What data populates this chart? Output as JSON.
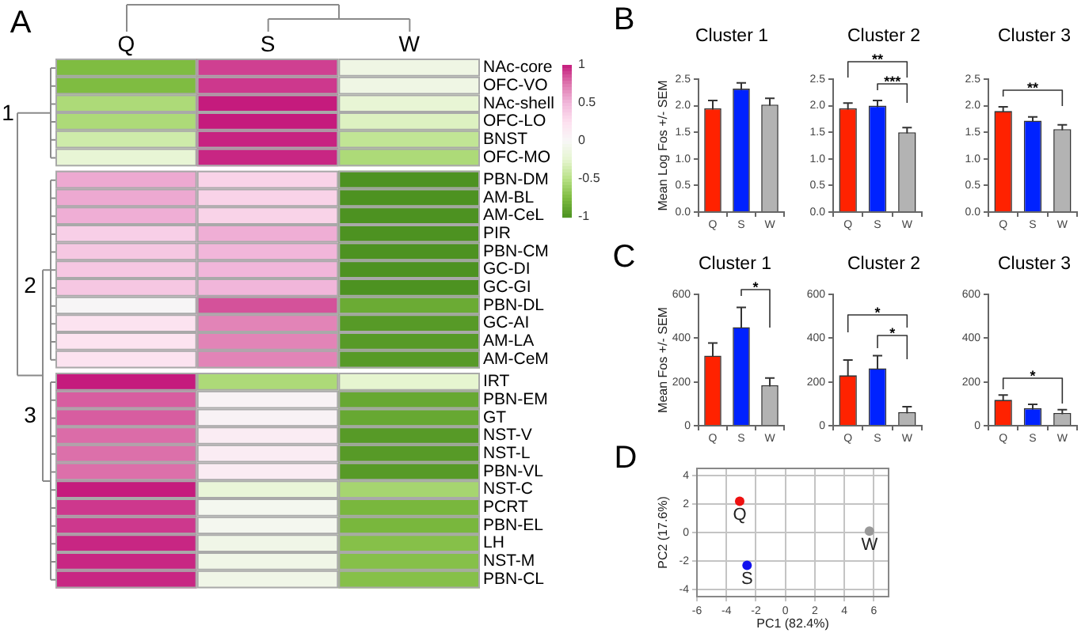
{
  "chart_data": [
    {
      "type": "heatmap",
      "categories": [
        "Q",
        "S",
        "W"
      ],
      "y_categories": [
        "NAc-core",
        "OFC-VO",
        "NAc-shell",
        "OFC-LO",
        "BNST",
        "OFC-MO",
        "PBN-DM",
        "AM-BL",
        "AM-CeL",
        "PIR",
        "PBN-CM",
        "GC-DI",
        "GC-GI",
        "PBN-DL",
        "GC-AI",
        "AM-LA",
        "AM-CeM",
        "IRT",
        "PBN-EM",
        "GT",
        "NST-V",
        "NST-L",
        "PBN-VL",
        "NST-C",
        "PCRT",
        "PBN-EL",
        "LH",
        "NST-M",
        "PBN-CL"
      ],
      "cells": [
        [
          -0.75,
          0.9,
          -0.12
        ],
        [
          -0.75,
          0.92,
          -0.12
        ],
        [
          -0.55,
          1,
          -0.22
        ],
        [
          -0.55,
          1,
          -0.3
        ],
        [
          -0.38,
          0.98,
          -0.45
        ],
        [
          -0.22,
          0.97,
          -0.55
        ],
        [
          0.55,
          0.33,
          -1
        ],
        [
          0.55,
          0.33,
          -1
        ],
        [
          0.53,
          0.33,
          -1
        ],
        [
          0.35,
          0.53,
          -1
        ],
        [
          0.4,
          0.5,
          -1
        ],
        [
          0.4,
          0.5,
          -1
        ],
        [
          0.4,
          0.5,
          -1
        ],
        [
          0.02,
          0.85,
          -0.85
        ],
        [
          0.22,
          0.7,
          -0.95
        ],
        [
          0.22,
          0.7,
          -0.95
        ],
        [
          0.22,
          0.7,
          -0.95
        ],
        [
          1,
          -0.55,
          -0.25
        ],
        [
          0.82,
          0.05,
          -0.87
        ],
        [
          0.82,
          0.05,
          -0.87
        ],
        [
          0.78,
          0.12,
          -0.95
        ],
        [
          0.77,
          0.12,
          -0.95
        ],
        [
          0.77,
          0.12,
          -0.95
        ],
        [
          1,
          -0.2,
          -0.58
        ],
        [
          0.92,
          -0.05,
          -0.78
        ],
        [
          0.92,
          -0.05,
          -0.78
        ],
        [
          0.97,
          -0.1,
          -0.72
        ],
        [
          0.97,
          -0.1,
          -0.72
        ],
        [
          0.97,
          -0.1,
          -0.72
        ]
      ],
      "clim": [
        -1,
        1
      ],
      "cticks": [
        -1,
        -0.5,
        0,
        0.5,
        1
      ],
      "annotations": [
        "A",
        "1",
        "2",
        "3"
      ]
    },
    {
      "type": "bar",
      "title": "Cluster 1",
      "ylabel": "Mean Log Fos +/- SEM",
      "categories": [
        "Q",
        "S",
        "W"
      ],
      "values": [
        1.95,
        2.32,
        2.02
      ],
      "colors": [
        "#ff2200",
        "#0022ff",
        "#b3b3b3"
      ],
      "errors": [
        0.15,
        0.11,
        0.12
      ],
      "ylim": [
        0,
        2.5
      ],
      "yticks": [
        {
          "value": 0,
          "label": "0.0"
        },
        0.5,
        {
          "value": 1,
          "label": "1.0"
        },
        1.5,
        {
          "value": 2,
          "label": "2.0"
        },
        2.5
      ],
      "annotations": [
        "B"
      ]
    },
    {
      "type": "bar",
      "title": "Cluster 2",
      "categories": [
        "Q",
        "S",
        "W"
      ],
      "values": [
        1.95,
        2.0,
        1.5
      ],
      "colors": [
        "#ff2200",
        "#0022ff",
        "#b3b3b3"
      ],
      "errors": [
        0.1,
        0.1,
        0.09
      ],
      "ylim": [
        0,
        2.5
      ],
      "yticks": [
        {
          "value": 0,
          "label": "0.0"
        },
        0.5,
        {
          "value": 1,
          "label": "1.0"
        },
        1.5,
        {
          "value": 2,
          "label": "2.0"
        },
        2.5
      ],
      "annotations": [
        "**",
        "***"
      ]
    },
    {
      "type": "bar",
      "title": "Cluster 3",
      "categories": [
        "Q",
        "S",
        "W"
      ],
      "values": [
        1.9,
        1.72,
        1.56
      ],
      "colors": [
        "#ff2200",
        "#0022ff",
        "#b3b3b3"
      ],
      "errors": [
        0.08,
        0.07,
        0.08
      ],
      "ylim": [
        0,
        2.5
      ],
      "yticks": [
        {
          "value": 0,
          "label": "0.0"
        },
        0.5,
        {
          "value": 1,
          "label": "1.0"
        },
        1.5,
        {
          "value": 2,
          "label": "2.0"
        },
        2.5
      ],
      "annotations": [
        "**"
      ]
    },
    {
      "type": "bar",
      "title": "Cluster 1",
      "ylabel": "Mean Fos +/- SEM",
      "categories": [
        "Q",
        "S",
        "W"
      ],
      "values": [
        320,
        450,
        185
      ],
      "colors": [
        "#ff2200",
        "#0022ff",
        "#b3b3b3"
      ],
      "errors": [
        58,
        90,
        33
      ],
      "ylim": [
        0,
        600
      ],
      "yticks": [
        0,
        200,
        400,
        600
      ],
      "annotations": [
        "C",
        "*"
      ]
    },
    {
      "type": "bar",
      "title": "Cluster 2",
      "categories": [
        "Q",
        "S",
        "W"
      ],
      "values": [
        230,
        262,
        62
      ],
      "colors": [
        "#ff2200",
        "#0022ff",
        "#b3b3b3"
      ],
      "errors": [
        70,
        58,
        25
      ],
      "ylim": [
        0,
        600
      ],
      "yticks": [
        0,
        200,
        400,
        600
      ],
      "annotations": [
        "*",
        "*"
      ]
    },
    {
      "type": "bar",
      "title": "Cluster 3",
      "categories": [
        "Q",
        "S",
        "W"
      ],
      "values": [
        118,
        80,
        58
      ],
      "colors": [
        "#ff2200",
        "#0022ff",
        "#b3b3b3"
      ],
      "errors": [
        22,
        18,
        15
      ],
      "ylim": [
        0,
        600
      ],
      "yticks": [
        0,
        200,
        400,
        600
      ],
      "annotations": [
        "*"
      ]
    },
    {
      "type": "scatter",
      "xlabel": "PC1 (82.4%)",
      "ylabel": "PC2 (17.6%)",
      "series": [
        {
          "name": "Q",
          "color": "#ee1111",
          "x": [
            -3.1
          ],
          "values": [
            2.2
          ]
        },
        {
          "name": "S",
          "color": "#1111ee",
          "x": [
            -2.6
          ],
          "values": [
            -2.3
          ]
        },
        {
          "name": "W",
          "color": "#999999",
          "x": [
            5.7
          ],
          "values": [
            0.1
          ]
        }
      ],
      "xlim": [
        -6,
        7
      ],
      "ylim": [
        -4.5,
        4.5
      ],
      "xticks": [
        -6,
        -4,
        -2,
        0,
        2,
        4,
        6
      ],
      "yticks": [
        -4,
        -2,
        0,
        2,
        4
      ],
      "grid": true,
      "marker": "circle",
      "annotations": [
        "D"
      ]
    }
  ]
}
